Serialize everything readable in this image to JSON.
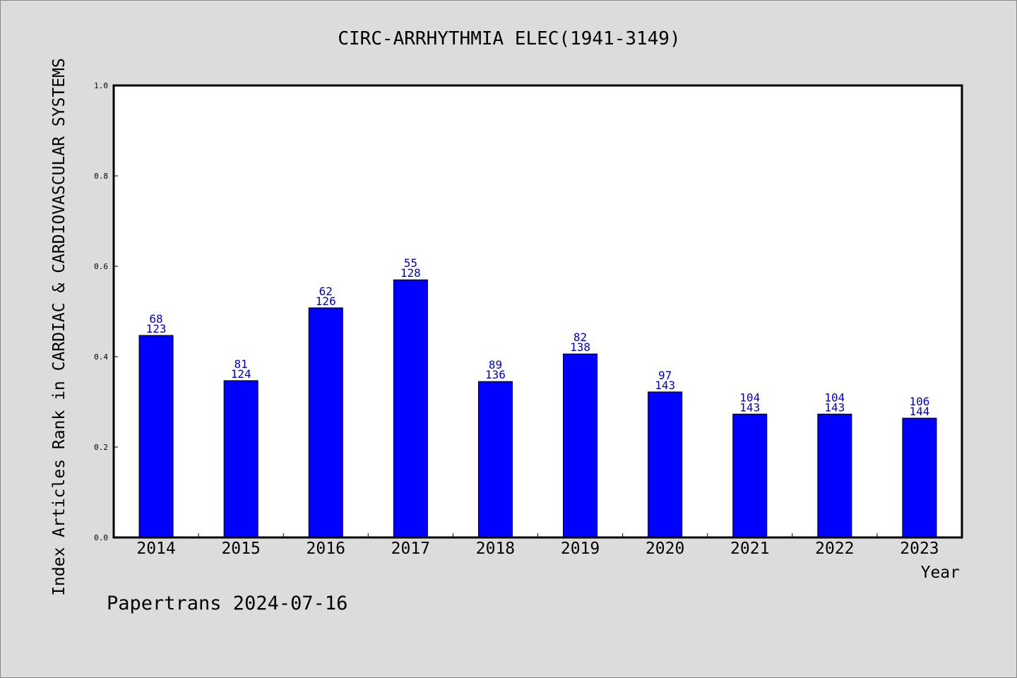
{
  "chart_data": {
    "type": "bar",
    "title": "CIRC-ARRHYTHMIA ELEC(1941-3149)",
    "xlabel": "Year",
    "ylabel": "Index Articles Rank in CARDIAC & CARDIOVASCULAR SYSTEMS",
    "ylim": [
      0,
      1.0
    ],
    "yticks": [
      "0.0",
      "0.2",
      "0.4",
      "0.6",
      "0.8",
      "1.0"
    ],
    "categories": [
      "2014",
      "2015",
      "2016",
      "2017",
      "2018",
      "2019",
      "2020",
      "2021",
      "2022",
      "2023"
    ],
    "values": [
      0.447,
      0.347,
      0.508,
      0.57,
      0.345,
      0.406,
      0.322,
      0.273,
      0.273,
      0.264
    ],
    "labels_top": [
      "68",
      "81",
      "62",
      "55",
      "89",
      "82",
      "97",
      "104",
      "104",
      "106"
    ],
    "labels_bottom": [
      "123",
      "124",
      "126",
      "128",
      "136",
      "138",
      "143",
      "143",
      "143",
      "144"
    ],
    "grid": false,
    "colors": {
      "bar": "#0000ff",
      "bar_edge": "#000000",
      "label": "#0000cc",
      "background": "#dcdcdc",
      "plot_background": "#ffffff"
    }
  },
  "footer": {
    "credit": "Papertrans 2024-07-16"
  }
}
